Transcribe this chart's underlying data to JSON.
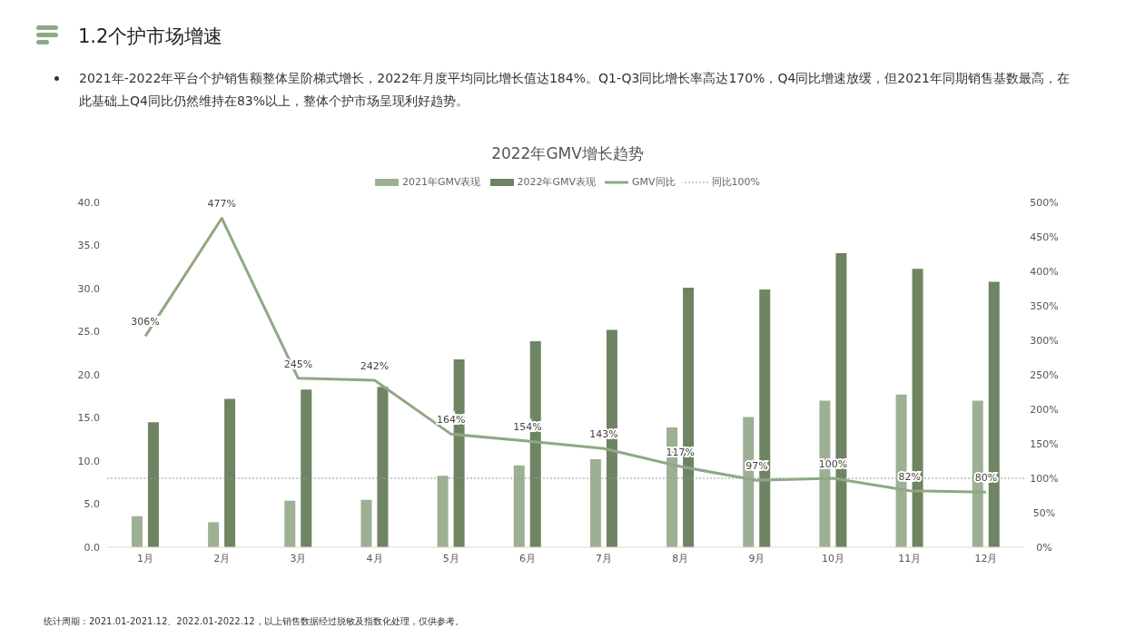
{
  "chart_data": {
    "type": "bar",
    "title": "2022年GMV增长趋势",
    "subtitle": "2021年-2022年平台个护销售额整体呈阶梯式增长，2022年月度平均同比增长值达184%。Q1-Q3同比增长率高达170%，Q4同比增速放缓，但2021年同期销售基数最高，在此基础上Q4同比仍然维持在83%以上，整体个护市场呈现利好趋势。",
    "annotations": [
      "1.2个护市场增速",
      "统计周期：2021.01-2021.12、2022.01-2022.12，以上销售数据经过脱敏及指数化处理，仅供参考。"
    ],
    "categories": [
      "1月",
      "2月",
      "3月",
      "4月",
      "5月",
      "6月",
      "7月",
      "8月",
      "9月",
      "10月",
      "11月",
      "12月"
    ],
    "series": [
      {
        "name": "2021年GMV表现",
        "color": "#9db094",
        "values": [
          3.6,
          2.9,
          5.4,
          5.5,
          8.3,
          9.5,
          10.2,
          13.9,
          15.1,
          17.0,
          17.7,
          17.0
        ]
      },
      {
        "name": "2022年GMV表现",
        "color": "#6e8462",
        "values": [
          14.5,
          17.2,
          18.3,
          18.6,
          21.8,
          23.9,
          25.2,
          30.1,
          29.9,
          34.1,
          32.3,
          30.8
        ]
      },
      {
        "name": "GMV同比",
        "type": "line",
        "axis": "y2",
        "color": "#8fa886",
        "marker": "none",
        "line_style": "solid",
        "values": [
          306,
          477,
          245,
          242,
          164,
          154,
          143,
          117,
          97,
          100,
          82,
          80
        ],
        "value_labels": [
          "306%",
          "477%",
          "245%",
          "242%",
          "164%",
          "154%",
          "143%",
          "117%",
          "97%",
          "100%",
          "82%",
          "80%"
        ]
      }
    ],
    "ylim": [
      0,
      40
    ],
    "yticks": [
      {
        "value": 0,
        "label": "0.0"
      },
      {
        "value": 5,
        "label": "5.0"
      },
      {
        "value": 10,
        "label": "10.0"
      },
      {
        "value": 15,
        "label": "15.0"
      },
      {
        "value": 20,
        "label": "20.0"
      },
      {
        "value": 25,
        "label": "25.0"
      },
      {
        "value": 30,
        "label": "30.0"
      },
      {
        "value": 35,
        "label": "35.0"
      },
      {
        "value": 40,
        "label": "40.0"
      }
    ],
    "y2lim": [
      0,
      500
    ],
    "y2ticks": [
      {
        "value": 0,
        "label": "0%"
      },
      {
        "value": 50,
        "label": "50%"
      },
      {
        "value": 100,
        "label": "100%"
      },
      {
        "value": 150,
        "label": "150%"
      },
      {
        "value": 200,
        "label": "200%"
      },
      {
        "value": 250,
        "label": "250%"
      },
      {
        "value": 300,
        "label": "300%"
      },
      {
        "value": 350,
        "label": "350%"
      },
      {
        "value": 400,
        "label": "400%"
      },
      {
        "value": 450,
        "label": "450%"
      },
      {
        "value": 500,
        "label": "500%"
      }
    ],
    "ref_lines": [
      {
        "axis": "y2",
        "value": 100,
        "label": "同比100%",
        "color": "#999999",
        "line_style": "dotted"
      }
    ],
    "grid": false,
    "legend": "top"
  }
}
